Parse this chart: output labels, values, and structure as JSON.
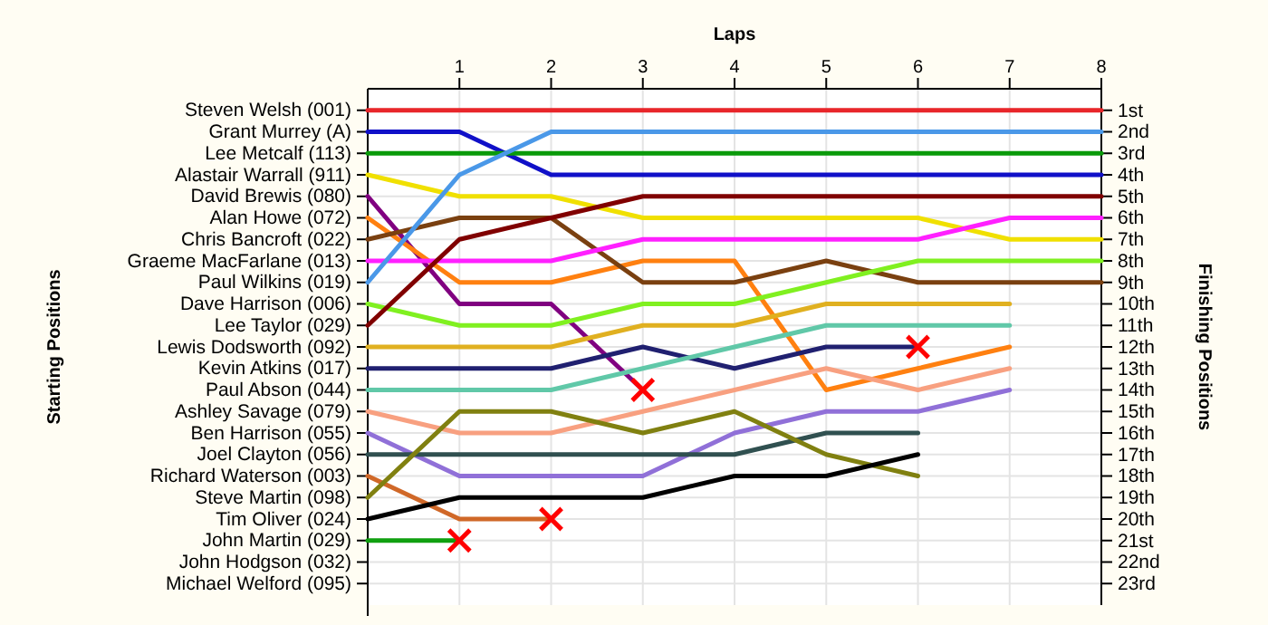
{
  "chart_data": {
    "type": "line",
    "xlabel": "Laps",
    "ylabel": "Finishing Positions",
    "x": [
      0,
      1,
      2,
      3,
      4,
      5,
      6,
      7,
      8
    ],
    "xlim": [
      0,
      8
    ],
    "xticks": [
      1,
      2,
      3,
      4,
      5,
      6,
      7,
      8
    ],
    "ylim": [
      24,
      0
    ],
    "yticks": [
      {
        "value": 1,
        "label": "1st"
      },
      {
        "value": 2,
        "label": "2nd"
      },
      {
        "value": 3,
        "label": "3rd"
      },
      {
        "value": 4,
        "label": "4th"
      },
      {
        "value": 5,
        "label": "5th"
      },
      {
        "value": 6,
        "label": "6th"
      },
      {
        "value": 7,
        "label": "7th"
      },
      {
        "value": 8,
        "label": "8th"
      },
      {
        "value": 9,
        "label": "9th"
      },
      {
        "value": 10,
        "label": "10th"
      },
      {
        "value": 11,
        "label": "11th"
      },
      {
        "value": 12,
        "label": "12th"
      },
      {
        "value": 13,
        "label": "13th"
      },
      {
        "value": 14,
        "label": "14th"
      },
      {
        "value": 15,
        "label": "15th"
      },
      {
        "value": 16,
        "label": "16th"
      },
      {
        "value": 17,
        "label": "17th"
      },
      {
        "value": 18,
        "label": "18th"
      },
      {
        "value": 19,
        "label": "19th"
      },
      {
        "value": 20,
        "label": "20th"
      },
      {
        "value": 21,
        "label": "21st"
      },
      {
        "value": 22,
        "label": "22nd"
      },
      {
        "value": 23,
        "label": "23rd"
      }
    ],
    "annotations": [
      "Starting Positions",
      "Steven Welsh (001)",
      "Grant Murrey (A)",
      "Lee Metcalf (113)",
      "Alastair Warrall (911)",
      "David Brewis (080)",
      "Alan Howe (072)",
      "Chris Bancroft (022)",
      "Graeme MacFarlane (013)",
      "Paul Wilkins (019)",
      "Dave Harrison (006)",
      "Lee Taylor (029)",
      "Lewis Dodsworth (092)",
      "Kevin Atkins (017)",
      "Paul Abson (044)",
      "Ashley Savage (079)",
      "Ben Harrison (055)",
      "Joel Clayton (056)",
      "Richard Waterson (003)",
      "Steve Martin (098)",
      "Tim Oliver (024)",
      "John Martin (029)",
      "John Hodgson (032)",
      "Michael Welford (095)"
    ],
    "grid": true,
    "line_style": "solid",
    "series": [
      {
        "color": "#e8262a",
        "values": [
          1,
          1,
          1,
          1,
          1,
          1,
          1,
          1,
          1
        ]
      },
      {
        "color": "#1010c8",
        "values": [
          2,
          2,
          4,
          4,
          4,
          4,
          4,
          4,
          4
        ]
      },
      {
        "color": "#0a9a0a",
        "values": [
          3,
          3,
          3,
          3,
          3,
          3,
          3,
          3,
          3
        ]
      },
      {
        "color": "#f0e000",
        "values": [
          4,
          5,
          5,
          6,
          6,
          6,
          6,
          7,
          7
        ]
      },
      {
        "color": "#800080",
        "values": [
          5,
          10,
          10,
          14,
          null,
          null,
          null,
          null,
          null
        ]
      },
      {
        "color": "#ff8010",
        "values": [
          6,
          9,
          9,
          8,
          8,
          14,
          13,
          12,
          null
        ]
      },
      {
        "color": "#7a4010",
        "values": [
          7,
          6,
          6,
          9,
          9,
          8,
          9,
          9,
          9
        ]
      },
      {
        "color": "#ff20ff",
        "values": [
          8,
          8,
          8,
          7,
          7,
          7,
          7,
          6,
          6
        ]
      },
      {
        "color": "#4a98e8",
        "values": [
          9,
          4,
          2,
          2,
          2,
          2,
          2,
          2,
          2
        ]
      },
      {
        "color": "#80f020",
        "values": [
          10,
          11,
          11,
          10,
          10,
          9,
          8,
          8,
          8
        ]
      },
      {
        "color": "#800000",
        "values": [
          11,
          7,
          6,
          5,
          5,
          5,
          5,
          5,
          5
        ]
      },
      {
        "color": "#e0b020",
        "values": [
          12,
          12,
          12,
          11,
          11,
          10,
          10,
          10,
          null
        ]
      },
      {
        "color": "#202070",
        "values": [
          13,
          13,
          13,
          12,
          13,
          12,
          12,
          null,
          null
        ]
      },
      {
        "color": "#60c8a8",
        "values": [
          14,
          14,
          14,
          13,
          12,
          11,
          11,
          11,
          null
        ]
      },
      {
        "color": "#f8a080",
        "values": [
          15,
          16,
          16,
          15,
          14,
          13,
          14,
          13,
          null
        ]
      },
      {
        "color": "#9070d8",
        "values": [
          16,
          18,
          18,
          18,
          16,
          15,
          15,
          14,
          null
        ]
      },
      {
        "color": "#305050",
        "values": [
          17,
          17,
          17,
          17,
          17,
          16,
          16,
          null,
          null
        ]
      },
      {
        "color": "#d06828",
        "values": [
          18,
          20,
          20,
          null,
          null,
          null,
          null,
          null,
          null
        ]
      },
      {
        "color": "#808010",
        "values": [
          19,
          15,
          15,
          16,
          15,
          17,
          18,
          null,
          null
        ]
      },
      {
        "color": "#000000",
        "values": [
          20,
          19,
          19,
          19,
          18,
          18,
          17,
          null,
          null
        ]
      },
      {
        "color": "#10a010",
        "values": [
          21,
          21,
          null,
          null,
          null,
          null,
          null,
          null,
          null
        ]
      },
      {
        "type": "scatter",
        "marker": "cross",
        "color": "#ff0000",
        "x": [
          1,
          2,
          3,
          6
        ],
        "values": [
          21,
          20,
          14,
          12
        ]
      }
    ]
  }
}
